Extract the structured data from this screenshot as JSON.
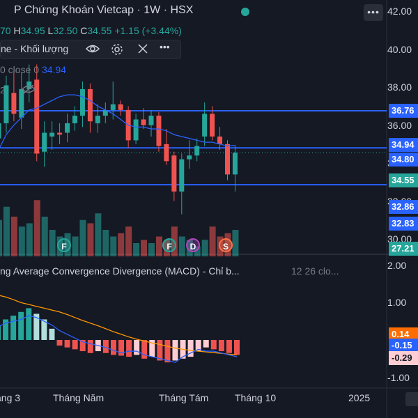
{
  "header": {
    "title": "P Chứng Khoán Vietcap · 1W · HSX",
    "more_label": "•••"
  },
  "ohlc": {
    "open_tail": "70",
    "h_key": "H",
    "h": "34.95",
    "l_key": "L",
    "l": "32.50",
    "c_key": "C",
    "c": "34.55",
    "change": "+1.15 (+3.44%)"
  },
  "volume_legend": {
    "label": "ne - Khối lượng",
    "eye_icon": "eye-icon",
    "settings_icon": "gear-icon",
    "close_icon": "close-icon",
    "more_icon": "more-icon"
  },
  "ma_legend": {
    "label": "0 close 0",
    "value": "34.94"
  },
  "overlay_text": {
    "hidden_index": "2"
  },
  "macd_legend": {
    "label": "ng Average Convergence Divergence (MACD) - Chỉ b...",
    "params": "12 26 clo..."
  },
  "price_axis": [
    "42.00",
    "40.00",
    "38.00",
    "36.00",
    "34.00",
    "32.00",
    "30.00"
  ],
  "price_badges": [
    {
      "text": "36.76",
      "price": 36.76,
      "bg": "#2962ff",
      "fg": "#ffffff"
    },
    {
      "text": "34.94",
      "price": 34.94,
      "bg": "#2962ff",
      "fg": "#ffffff"
    },
    {
      "text": "34.80",
      "price": 34.2,
      "bg": "#2962ff",
      "fg": "#ffffff"
    },
    {
      "text": "34.55",
      "price": 33.1,
      "bg": "#26a69a",
      "fg": "#ffffff"
    },
    {
      "text": "32.86",
      "price": 31.7,
      "bg": "#2962ff",
      "fg": "#ffffff"
    },
    {
      "text": "32.83",
      "price": 30.8,
      "bg": "#2962ff",
      "fg": "#ffffff"
    },
    {
      "text": "27.21",
      "price": 29.5,
      "bg": "#26a69a",
      "fg": "#ffffff"
    }
  ],
  "macd_axis": [
    "2.00",
    "1.00",
    "-1.00"
  ],
  "macd_badges": [
    {
      "text": "0.14",
      "val": 0.14,
      "bg": "#ff6d00",
      "fg": "#ffffff"
    },
    {
      "text": "-0.15",
      "val": -0.15,
      "bg": "#2962ff",
      "fg": "#ffffff"
    },
    {
      "text": "-0.29",
      "val": -0.48,
      "bg": "#ffcdd2",
      "fg": "#151924"
    }
  ],
  "time_axis": [
    "áng 3",
    "Tháng Năm",
    "Tháng Tám",
    "Tháng 10",
    "2025"
  ],
  "event_markers": [
    {
      "label": "F",
      "color": "#26a69a"
    },
    {
      "label": "F",
      "color": "#26a69a"
    },
    {
      "label": "D",
      "color": "#ab47bc"
    },
    {
      "label": "S",
      "color": "#ff7043"
    }
  ],
  "horizontal_levels": [
    36.76,
    34.8,
    32.86
  ],
  "colors": {
    "up": "#26a69a",
    "down": "#ef5350",
    "ma": "#2962ff",
    "signal": "#ff9800",
    "hline": "#2962ff"
  },
  "chart_data": {
    "type": "candlestick",
    "timeframe": "1W",
    "price_range": [
      29.3,
      42.6
    ],
    "candles": [
      {
        "o": 35.3,
        "h": 36.8,
        "l": 34.8,
        "c": 36.1
      },
      {
        "o": 36.1,
        "h": 38.6,
        "l": 35.6,
        "c": 38.1
      },
      {
        "o": 37.7,
        "h": 38.9,
        "l": 36.2,
        "c": 36.6
      },
      {
        "o": 36.4,
        "h": 38.8,
        "l": 35.8,
        "c": 37.9
      },
      {
        "o": 37.9,
        "h": 39.2,
        "l": 37.2,
        "c": 38.3
      },
      {
        "o": 38.4,
        "h": 39.2,
        "l": 34.1,
        "c": 34.5
      },
      {
        "o": 34.6,
        "h": 36.2,
        "l": 33.8,
        "c": 35.6
      },
      {
        "o": 35.4,
        "h": 36.2,
        "l": 34.7,
        "c": 35.6
      },
      {
        "o": 35.6,
        "h": 36.1,
        "l": 35.0,
        "c": 35.5
      },
      {
        "o": 35.6,
        "h": 36.6,
        "l": 35.1,
        "c": 36.1
      },
      {
        "o": 36.1,
        "h": 37.0,
        "l": 35.7,
        "c": 36.5
      },
      {
        "o": 36.5,
        "h": 38.3,
        "l": 35.9,
        "c": 37.9
      },
      {
        "o": 37.9,
        "h": 38.2,
        "l": 35.6,
        "c": 36.2
      },
      {
        "o": 36.1,
        "h": 37.1,
        "l": 35.6,
        "c": 36.5
      },
      {
        "o": 36.5,
        "h": 37.2,
        "l": 36.1,
        "c": 36.8
      },
      {
        "o": 36.8,
        "h": 38.3,
        "l": 36.3,
        "c": 37.1
      },
      {
        "o": 37.1,
        "h": 37.3,
        "l": 36.5,
        "c": 36.8
      },
      {
        "o": 36.8,
        "h": 37.0,
        "l": 34.8,
        "c": 35.2
      },
      {
        "o": 35.2,
        "h": 36.6,
        "l": 35.0,
        "c": 36.3
      },
      {
        "o": 36.3,
        "h": 36.9,
        "l": 35.8,
        "c": 36.0
      },
      {
        "o": 36.0,
        "h": 36.8,
        "l": 35.4,
        "c": 36.5
      },
      {
        "o": 36.5,
        "h": 36.7,
        "l": 34.6,
        "c": 34.9
      },
      {
        "o": 35.0,
        "h": 35.8,
        "l": 33.9,
        "c": 34.1
      },
      {
        "o": 34.4,
        "h": 34.6,
        "l": 32.0,
        "c": 32.5
      },
      {
        "o": 32.5,
        "h": 34.5,
        "l": 31.3,
        "c": 34.2
      },
      {
        "o": 34.2,
        "h": 35.2,
        "l": 33.7,
        "c": 34.4
      },
      {
        "o": 34.4,
        "h": 35.3,
        "l": 34.1,
        "c": 34.9
      },
      {
        "o": 35.4,
        "h": 37.2,
        "l": 34.9,
        "c": 36.6
      },
      {
        "o": 36.6,
        "h": 37.0,
        "l": 35.2,
        "c": 35.4
      },
      {
        "o": 35.4,
        "h": 35.9,
        "l": 34.7,
        "c": 35.0
      },
      {
        "o": 35.0,
        "h": 35.2,
        "l": 33.1,
        "c": 33.4
      },
      {
        "o": 33.4,
        "h": 34.95,
        "l": 32.5,
        "c": 34.55
      }
    ],
    "volume_colors": [
      "#26a69a",
      "#26a69a",
      "#ef5350",
      "#26a69a",
      "#26a69a",
      "#ef5350",
      "#26a69a",
      "#26a69a",
      "#26a69a",
      "#26a69a",
      "#26a69a",
      "#26a69a",
      "#ef5350",
      "#26a69a",
      "#26a69a",
      "#26a69a",
      "#ef5350",
      "#ef5350",
      "#26a69a",
      "#ef5350",
      "#26a69a",
      "#ef5350",
      "#ef5350",
      "#ef5350",
      "#26a69a",
      "#26a69a",
      "#26a69a",
      "#26a69a",
      "#ef5350",
      "#ef5350",
      "#ef5350",
      "#26a69a"
    ],
    "volume": [
      0.55,
      0.75,
      0.6,
      0.45,
      0.5,
      0.85,
      0.6,
      0.4,
      0.3,
      0.35,
      0.3,
      0.55,
      0.5,
      0.65,
      0.4,
      0.3,
      0.35,
      0.45,
      0.2,
      0.25,
      0.2,
      0.3,
      0.25,
      0.45,
      0.3,
      0.25,
      0.15,
      0.25,
      0.45,
      0.3,
      0.35,
      0.4
    ],
    "ma": [
      34.7,
      35.5,
      36.0,
      36.4,
      36.8,
      36.9,
      37.1,
      37.3,
      37.5,
      37.6,
      37.6,
      37.5,
      37.3,
      37.0,
      36.8,
      36.6,
      36.3,
      36.0,
      35.9,
      35.9,
      35.8,
      35.8,
      35.7,
      35.5,
      35.4,
      35.3,
      35.2,
      35.1,
      35.1,
      35.0,
      34.9,
      34.94
    ],
    "macd_range": [
      -1.25,
      2.2
    ],
    "macd_line": [
      0.35,
      0.45,
      0.5,
      0.55,
      0.65,
      0.6,
      0.5,
      0.4,
      0.25,
      0.15,
      0.05,
      -0.05,
      -0.1,
      -0.15,
      -0.2,
      -0.28,
      -0.35,
      -0.3,
      -0.3,
      -0.4,
      -0.45,
      -0.5,
      -0.55,
      -0.6,
      -0.45,
      -0.35,
      -0.25,
      -0.3,
      -0.3,
      -0.35,
      -0.4,
      -0.45
    ],
    "signal_line": [
      1.2,
      1.15,
      1.08,
      1.0,
      0.95,
      0.9,
      0.85,
      0.8,
      0.75,
      0.68,
      0.6,
      0.52,
      0.45,
      0.38,
      0.3,
      0.22,
      0.15,
      0.08,
      0.02,
      -0.03,
      -0.08,
      -0.12,
      -0.17,
      -0.22,
      -0.25,
      -0.28,
      -0.3,
      -0.32,
      -0.34,
      -0.36,
      -0.38,
      -0.4
    ],
    "histogram": [
      0.4,
      0.55,
      0.65,
      0.75,
      0.85,
      0.7,
      0.55,
      0.3,
      -0.15,
      -0.2,
      -0.25,
      -0.3,
      -0.35,
      -0.3,
      -0.35,
      -0.4,
      -0.42,
      -0.45,
      -0.4,
      -0.5,
      -0.45,
      -0.55,
      -0.6,
      -0.55,
      -0.5,
      -0.45,
      -0.3,
      -0.2,
      -0.25,
      -0.3,
      -0.35,
      -0.4
    ]
  }
}
